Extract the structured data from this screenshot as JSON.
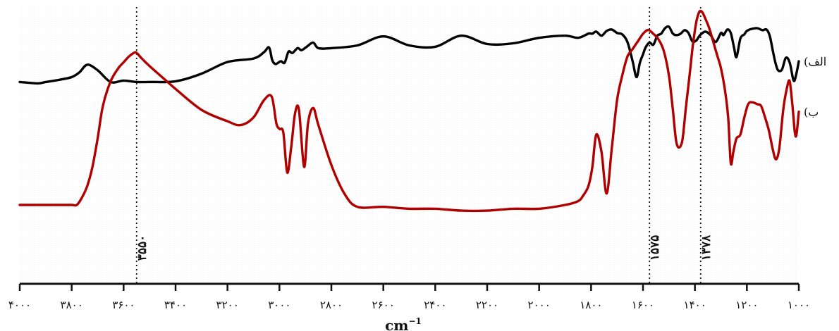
{
  "chart_data": {
    "type": "line",
    "xlabel": "cm",
    "xlabel_superscript": "−1",
    "xlim": [
      4000,
      1000
    ],
    "x_ticks": [
      4000,
      3800,
      3600,
      3400,
      3200,
      3000,
      2800,
      2600,
      2400,
      2200,
      2000,
      1800,
      1600,
      1400,
      1200,
      1000
    ],
    "x_tick_labels": [
      "۴۰۰۰",
      "۳۸۰۰",
      "۳۶۰۰",
      "۳۴۰۰",
      "۳۲۰۰",
      "۳۰۰۰",
      "۲۸۰۰",
      "۲۶۰۰",
      "۲۴۰۰",
      "۲۲۰۰",
      "۲۰۰۰",
      "۱۸۰۰",
      "۱۶۰۰",
      "۱۴۰۰",
      "۱۲۰۰",
      "۱۰۰۰"
    ],
    "grid": true,
    "y_ticks_shown": false,
    "annotations": [
      {
        "x": 3550,
        "label": "۳۵۵۰"
      },
      {
        "x": 1575,
        "label": "۱۵۷۵"
      },
      {
        "x": 1378,
        "label": "۱۳۷۸"
      }
    ],
    "series": [
      {
        "name": "(الف",
        "color": "#000000",
        "x": [
          4000,
          3930,
          3900,
          3850,
          3800,
          3770,
          3740,
          3700,
          3650,
          3600,
          3550,
          3500,
          3400,
          3300,
          3200,
          3100,
          3060,
          3040,
          3028,
          3015,
          2995,
          2980,
          2965,
          2950,
          2930,
          2915,
          2895,
          2870,
          2850,
          2800,
          2700,
          2600,
          2500,
          2400,
          2300,
          2200,
          2100,
          2000,
          1900,
          1850,
          1810,
          1795,
          1780,
          1760,
          1740,
          1720,
          1700,
          1680,
          1660,
          1640,
          1625,
          1612,
          1600,
          1590,
          1575,
          1560,
          1545,
          1530,
          1515,
          1500,
          1485,
          1470,
          1455,
          1440,
          1425,
          1410,
          1395,
          1380,
          1360,
          1340,
          1320,
          1300,
          1290,
          1275,
          1262,
          1250,
          1240,
          1225,
          1210,
          1200,
          1180,
          1160,
          1140,
          1125,
          1112,
          1100,
          1090,
          1080,
          1065,
          1050,
          1035,
          1020,
          1010,
          1000
        ],
        "y": [
          80,
          82,
          80,
          77,
          73,
          66,
          55,
          63,
          80,
          78,
          80,
          80,
          79,
          68,
          51,
          46,
          37,
          30,
          48,
          54,
          50,
          52,
          36,
          38,
          31,
          34,
          29,
          23,
          31,
          31,
          27,
          14,
          27,
          29,
          13,
          25,
          24,
          16,
          13,
          16,
          10,
          10,
          7,
          13,
          6,
          4,
          9,
          11,
          22,
          50,
          73,
          52,
          40,
          30,
          23,
          26,
          13,
          10,
          2,
          0,
          10,
          12,
          10,
          5,
          9,
          21,
          20,
          12,
          7,
          12,
          22,
          9,
          12,
          4,
          9,
          29,
          44,
          17,
          11,
          6,
          3,
          2,
          5,
          4,
          13,
          35,
          52,
          63,
          62,
          45,
          52,
          78,
          69,
          50
        ]
      },
      {
        "name": "(ب",
        "color": "#b00000",
        "x": [
          4000,
          3950,
          3900,
          3850,
          3800,
          3780,
          3760,
          3740,
          3720,
          3700,
          3680,
          3650,
          3620,
          3600,
          3580,
          3560,
          3550,
          3530,
          3500,
          3450,
          3400,
          3300,
          3200,
          3150,
          3100,
          3060,
          3030,
          3012,
          3000,
          2985,
          2970,
          2955,
          2940,
          2925,
          2905,
          2890,
          2870,
          2850,
          2800,
          2750,
          2700,
          2600,
          2500,
          2400,
          2300,
          2200,
          2100,
          2000,
          1900,
          1850,
          1830,
          1810,
          1795,
          1780,
          1760,
          1740,
          1720,
          1700,
          1680,
          1660,
          1640,
          1620,
          1600,
          1580,
          1560,
          1540,
          1520,
          1500,
          1485,
          1470,
          1450,
          1435,
          1420,
          1408,
          1395,
          1385,
          1378,
          1370,
          1360,
          1345,
          1330,
          1315,
          1300,
          1285,
          1272,
          1262,
          1252,
          1240,
          1225,
          1210,
          1195,
          1180,
          1160,
          1145,
          1130,
          1115,
          1100,
          1088,
          1075,
          1060,
          1045,
          1035,
          1025,
          1012,
          1000
        ],
        "y": [
          70,
          70,
          70,
          70,
          70,
          70,
          66,
          60,
          50,
          35,
          18,
          5,
          -2,
          -5,
          -8,
          -10,
          -10,
          -7,
          -3,
          3,
          9,
          20,
          26,
          28,
          24,
          15,
          13,
          27,
          30,
          32,
          53,
          40,
          22,
          20,
          50,
          27,
          19,
          28,
          49,
          64,
          71,
          71,
          72,
          72,
          73,
          73,
          72,
          72,
          70,
          68,
          65,
          60,
          50,
          33,
          42,
          64,
          40,
          15,
          2,
          -8,
          -12,
          -16,
          -20,
          -22,
          -20,
          -17,
          -11,
          2,
          20,
          38,
          37,
          19,
          1,
          -14,
          -26,
          -31,
          -32,
          -31,
          -28,
          -23,
          -16,
          -9,
          -2,
          9,
          24,
          48,
          42,
          35,
          33,
          24,
          17,
          16,
          17,
          18,
          24,
          31,
          41,
          46,
          40,
          20,
          8,
          5,
          17,
          34,
          21
        ]
      }
    ]
  }
}
